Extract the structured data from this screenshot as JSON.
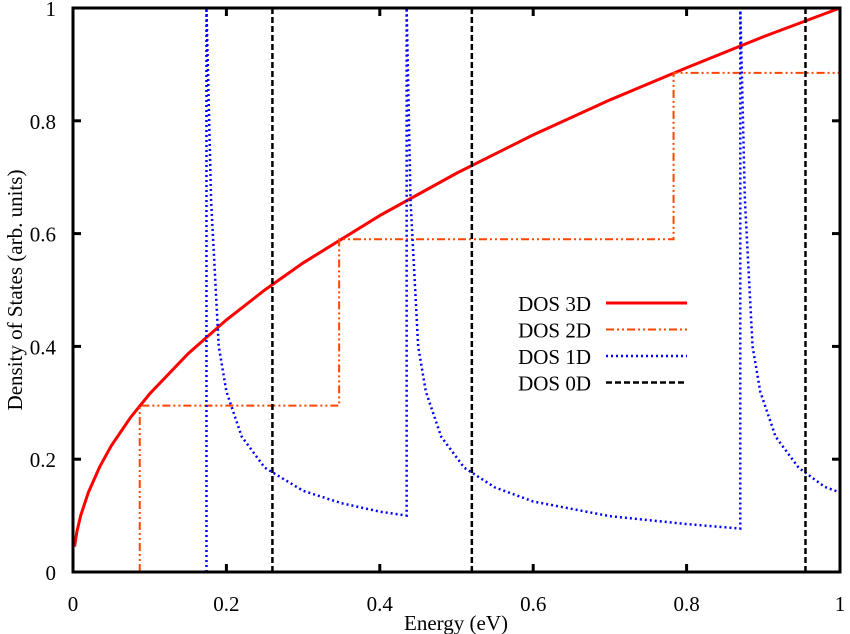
{
  "chart_data": {
    "type": "line",
    "title": "",
    "xlabel": "Energy (eV)",
    "ylabel": "Density of States (arb. units)",
    "xlim": [
      0,
      1
    ],
    "ylim": [
      0,
      1
    ],
    "xticks": [
      "0",
      "0.2",
      "0.4",
      "0.6",
      "0.8",
      "1"
    ],
    "yticks": [
      "0",
      "0.2",
      "0.4",
      "0.6",
      "0.8",
      "1"
    ],
    "grid": false,
    "legend_position": "center-right",
    "series": [
      {
        "name": "DOS 3D",
        "color": "#ff0000",
        "style": "solid",
        "x": [
          0.002,
          0.005,
          0.01,
          0.02,
          0.035,
          0.05,
          0.075,
          0.1,
          0.15,
          0.2,
          0.25,
          0.3,
          0.4,
          0.5,
          0.6,
          0.7,
          0.8,
          0.9,
          1.0
        ],
        "y": [
          0.045,
          0.071,
          0.1,
          0.141,
          0.187,
          0.224,
          0.274,
          0.316,
          0.387,
          0.447,
          0.5,
          0.548,
          0.632,
          0.707,
          0.775,
          0.837,
          0.894,
          0.949,
          1.0
        ]
      },
      {
        "name": "DOS 2D",
        "color": "#ff4500",
        "style": "dash-dot-dot",
        "x": [
          0.087,
          0.087,
          0.347,
          0.347,
          0.783,
          0.783,
          1.0
        ],
        "y": [
          0,
          0.295,
          0.295,
          0.59,
          0.59,
          0.885,
          0.885
        ]
      },
      {
        "name": "DOS 1D",
        "color": "#0000ff",
        "style": "dotted",
        "x": [
          0.174,
          0.174,
          0.18,
          0.19,
          0.2,
          0.22,
          0.25,
          0.3,
          0.35,
          0.4,
          0.435,
          0.435,
          0.44,
          0.45,
          0.46,
          0.48,
          0.51,
          0.55,
          0.6,
          0.7,
          0.8,
          0.87,
          0.87,
          0.876,
          0.886,
          0.896,
          0.916,
          0.946,
          0.98,
          1.0
        ],
        "y": [
          0,
          1.0,
          0.66,
          0.4,
          0.32,
          0.24,
          0.185,
          0.144,
          0.122,
          0.107,
          0.1,
          1.0,
          0.66,
          0.4,
          0.32,
          0.24,
          0.185,
          0.15,
          0.125,
          0.099,
          0.085,
          0.077,
          1.0,
          0.66,
          0.4,
          0.32,
          0.24,
          0.185,
          0.151,
          0.141
        ]
      },
      {
        "name": "DOS 0D",
        "color": "#000000",
        "style": "dashed",
        "peaks": [
          0.26,
          0.52,
          0.955
        ]
      }
    ]
  }
}
